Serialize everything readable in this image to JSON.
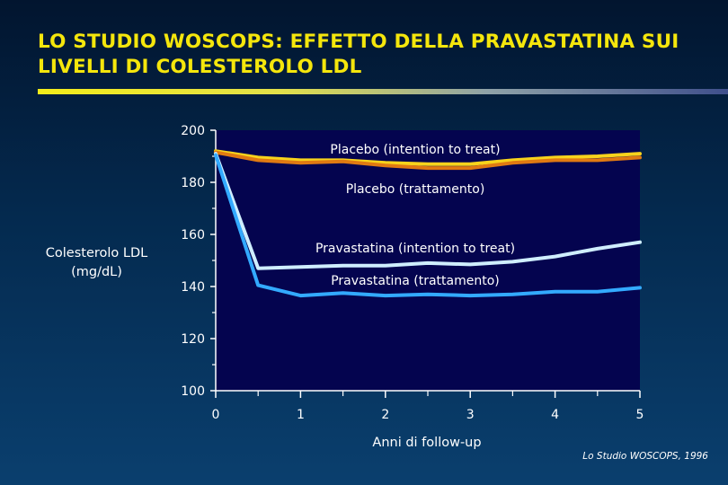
{
  "slide": {
    "title_line1": "LO STUDIO WOSCOPS: EFFETTO DELLA PRAVASTATINA SUI",
    "title_line2": "LIVELLI DI COLESTEROLO LDL",
    "source": "Lo Studio WOSCOPS, 1996"
  },
  "colors": {
    "title": "#f5e60c",
    "plot_background": "#04044f",
    "placebo_itt": "#f7d31c",
    "placebo_trattamento": "#e07a12",
    "pravastatina_itt": "#cfeeff",
    "pravastatina_trattamento": "#33aaff"
  },
  "chart_data": {
    "type": "line",
    "xlabel": "Anni di follow-up",
    "ylabel_line1": "Colesterolo LDL",
    "ylabel_line2": "(mg/dL)",
    "xlim": [
      0,
      5
    ],
    "ylim": [
      100,
      200
    ],
    "x_ticks": [
      "0",
      "1",
      "2",
      "3",
      "4",
      "5"
    ],
    "y_ticks": [
      "100",
      "120",
      "140",
      "160",
      "180",
      "200"
    ],
    "x": [
      0,
      0.5,
      1,
      1.5,
      2,
      2.5,
      3,
      3.5,
      4,
      4.5,
      5
    ],
    "series": [
      {
        "name": "Placebo (intention to treat)",
        "color_key": "placebo_itt",
        "values": [
          192,
          189.5,
          188.5,
          188.5,
          187.5,
          187,
          187,
          188.5,
          189.5,
          190,
          191
        ]
      },
      {
        "name": "Placebo (trattamento)",
        "color_key": "placebo_trattamento",
        "values": [
          191.5,
          188.5,
          187.5,
          188,
          186.5,
          185.5,
          185.5,
          187.5,
          188.5,
          188.5,
          189.5
        ]
      },
      {
        "name": "Pravastatina (intention to treat)",
        "color_key": "pravastatina_itt",
        "values": [
          191,
          147,
          147.5,
          148,
          148,
          149,
          148.5,
          149.5,
          151.5,
          154.5,
          157
        ]
      },
      {
        "name": "Pravastatina (trattamento)",
        "color_key": "pravastatina_trattamento",
        "values": [
          190.5,
          140.5,
          136.5,
          137.5,
          136.5,
          137,
          136.5,
          137,
          138,
          138,
          139.5
        ]
      }
    ]
  }
}
